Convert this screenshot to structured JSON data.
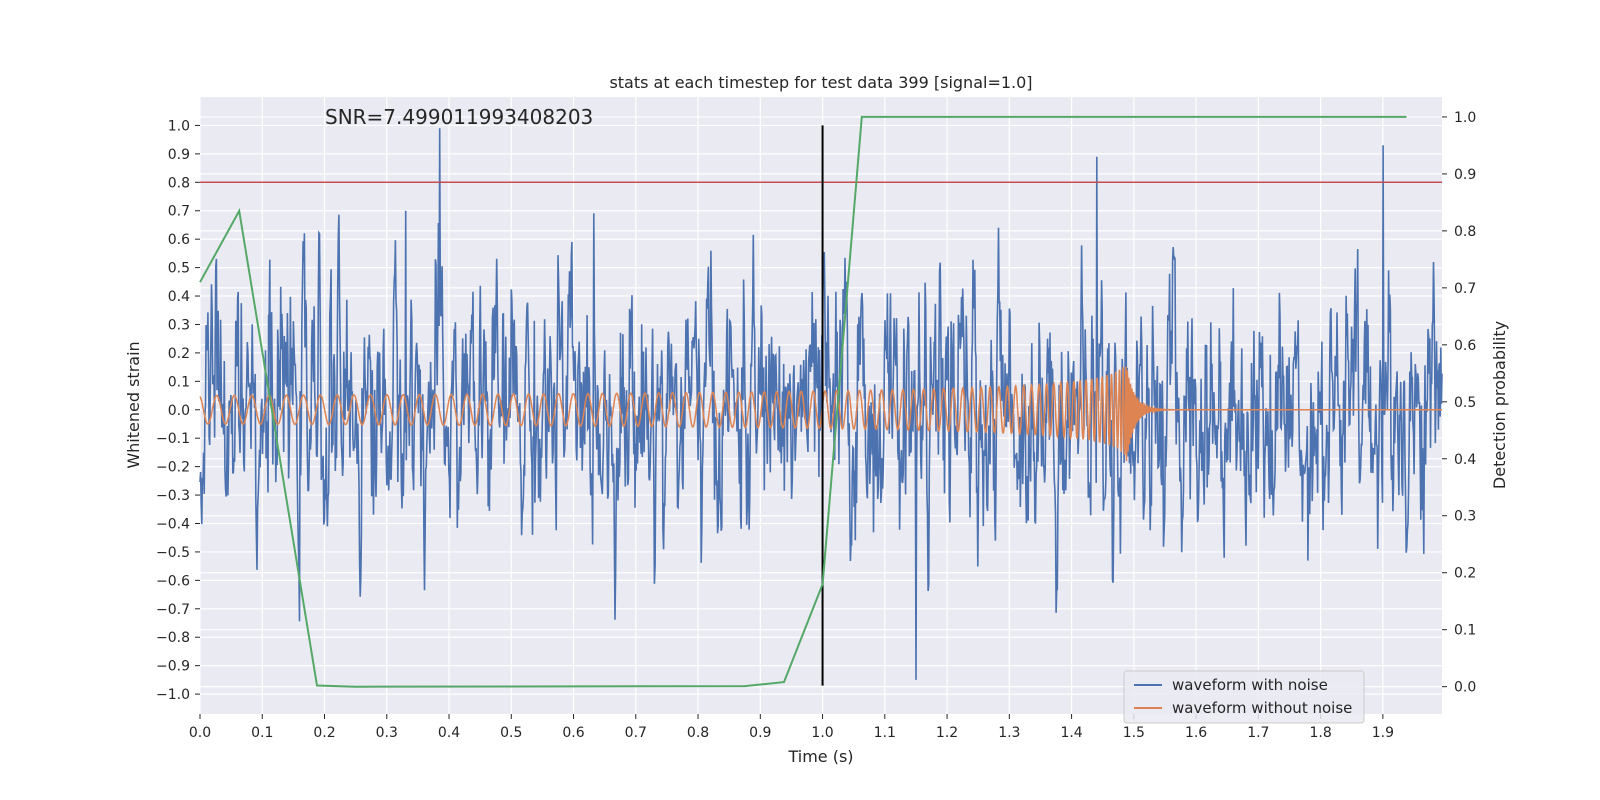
{
  "chart_data": {
    "type": "line",
    "title": "stats at each timestep for test data 399 [signal=1.0]",
    "annotation": "SNR=7.499011993408203",
    "xlabel": "Time (s)",
    "ylabel_left": "Whitened strain",
    "ylabel_right": "Detection probability",
    "xlim": [
      0.0,
      1.995
    ],
    "ylim_left": [
      -1.07,
      1.1
    ],
    "ylim_right": [
      -0.048,
      1.035
    ],
    "x_ticks": [
      "0.0",
      "0.1",
      "0.2",
      "0.3",
      "0.4",
      "0.5",
      "0.6",
      "0.7",
      "0.8",
      "0.9",
      "1.0",
      "1.1",
      "1.2",
      "1.3",
      "1.4",
      "1.5",
      "1.6",
      "1.7",
      "1.8",
      "1.9"
    ],
    "y_left_ticks": [
      "−1.0",
      "−0.9",
      "−0.8",
      "−0.7",
      "−0.6",
      "−0.5",
      "−0.4",
      "−0.3",
      "−0.2",
      "−0.1",
      "0.0",
      "0.1",
      "0.2",
      "0.3",
      "0.4",
      "0.5",
      "0.6",
      "0.7",
      "0.8",
      "0.9",
      "1.0"
    ],
    "y_right_ticks": [
      "0.0",
      "0.1",
      "0.2",
      "0.3",
      "0.4",
      "0.5",
      "0.6",
      "0.7",
      "0.8",
      "0.9",
      "1.0"
    ],
    "grid": true,
    "legend_position": "lower-right",
    "legend": [
      "waveform with noise",
      "waveform without noise"
    ],
    "colors": {
      "noisy": "#4c72b0",
      "clean": "#dd8452",
      "probability": "#55a868",
      "threshold": "#c44e52",
      "vline": "#000000",
      "plot_bg": "#eaeaf2"
    },
    "series": [
      {
        "name": "waveform with noise",
        "axis": "left",
        "description_samples": 2048,
        "noise_amplitude_approx": 0.3,
        "notable_peaks": [
          [
            0.385,
            0.99
          ],
          [
            0.33,
            0.7
          ],
          [
            1.15,
            -0.95
          ],
          [
            1.9,
            0.93
          ],
          [
            1.44,
            0.89
          ]
        ]
      },
      {
        "name": "waveform without noise",
        "axis": "left",
        "start_amplitude": 0.05,
        "start_frequency_hz": 35,
        "merger_time": 1.487,
        "peak_amplitude": 0.2
      },
      {
        "axis": "right",
        "x": [
          0.0,
          0.063,
          0.188,
          0.25,
          0.875,
          0.938,
          1.0,
          1.063,
          1.125,
          1.938
        ],
        "y": [
          0.71,
          0.835,
          0.002,
          0.0,
          0.001,
          0.008,
          0.18,
          1.0,
          1.0,
          1.0
        ]
      }
    ],
    "threshold_left": 0.8,
    "vertical_line_x": 1.0
  }
}
